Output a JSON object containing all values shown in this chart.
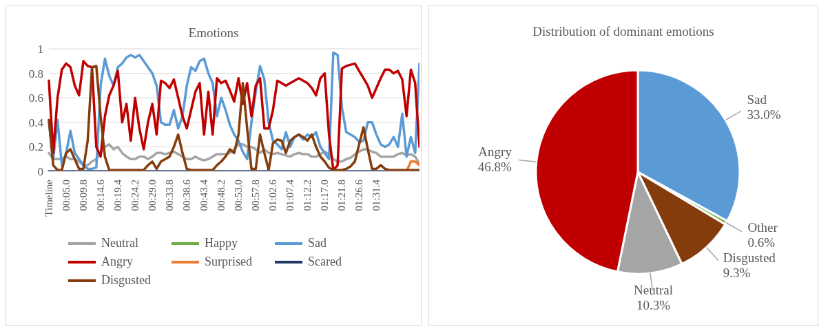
{
  "chart_data": [
    {
      "type": "line",
      "title": "Emotions",
      "categories": [
        "Timeline",
        null,
        null,
        null,
        "00:05.0",
        null,
        null,
        null,
        "00:09.8",
        null,
        null,
        null,
        "00:14.6",
        null,
        null,
        null,
        "00:19.4",
        null,
        null,
        null,
        "00:24.2",
        null,
        null,
        null,
        "00:29.0",
        null,
        null,
        null,
        "00:33.8",
        null,
        null,
        null,
        "00:38.6",
        null,
        null,
        null,
        "00:43.4",
        null,
        null,
        null,
        "00:48.2",
        null,
        null,
        null,
        "00:53.0",
        null,
        null,
        null,
        "00:57.8",
        null,
        null,
        null,
        "01:02.6",
        null,
        null,
        null,
        "01:07.4",
        null,
        null,
        null,
        "01:12.2",
        null,
        null,
        null,
        "01:17.0",
        null,
        null,
        null,
        "01:21.8",
        null,
        null,
        null,
        "01:26.6",
        null,
        null,
        null,
        "01:31.4",
        null,
        null,
        null,
        null,
        null,
        null,
        null,
        null,
        null,
        null
      ],
      "ylim": [
        0,
        1
      ],
      "yticks": [
        0,
        0.2,
        0.4,
        0.6,
        0.8,
        1
      ],
      "grid": "y",
      "legend": "bottom",
      "series": [
        {
          "name": "Neutral",
          "color": "#a5a5a5",
          "values": [
            0.15,
            0.1,
            0.1,
            0.1,
            0.12,
            0.1,
            0.1,
            0.08,
            0.05,
            0.05,
            0.08,
            0.1,
            0.15,
            0.2,
            0.22,
            0.18,
            0.2,
            0.15,
            0.12,
            0.1,
            0.1,
            0.12,
            0.12,
            0.1,
            0.12,
            0.15,
            0.15,
            0.14,
            0.15,
            0.16,
            0.14,
            0.12,
            0.1,
            0.1,
            0.12,
            0.1,
            0.09,
            0.1,
            0.12,
            0.14,
            0.14,
            0.14,
            0.15,
            0.18,
            0.22,
            0.22,
            0.2,
            0.2,
            0.18,
            0.15,
            0.18,
            0.15,
            0.14,
            0.15,
            0.14,
            0.13,
            0.12,
            0.14,
            0.15,
            0.14,
            0.14,
            0.12,
            0.12,
            0.14,
            0.16,
            0.14,
            0.1,
            0.08,
            0.08,
            0.1,
            0.11,
            0.14,
            0.16,
            0.18,
            0.18,
            0.16,
            0.15,
            0.12,
            0.12,
            0.12,
            0.12,
            0.14,
            0.15,
            0.13,
            0.14,
            0.12,
            0.06
          ]
        },
        {
          "name": "Happy",
          "color": "#70ad47",
          "values": [
            null,
            null,
            null,
            null,
            null,
            null,
            null,
            null,
            null,
            null,
            null,
            null,
            null,
            null,
            null,
            null,
            null,
            null,
            null,
            null,
            null,
            null,
            null,
            null,
            null,
            null,
            null,
            null,
            null,
            null,
            null,
            null,
            null,
            null,
            null,
            null,
            null,
            null,
            null,
            null,
            null,
            null,
            null,
            null,
            null,
            null,
            null,
            null,
            null,
            null,
            null,
            null,
            null,
            null,
            null,
            null,
            null,
            null,
            null,
            null,
            null,
            null,
            null,
            null,
            null,
            null,
            null,
            null,
            null,
            null,
            null,
            null,
            null,
            null,
            null,
            null,
            null,
            null,
            null,
            null,
            null,
            null,
            null,
            null,
            null,
            null,
            null
          ]
        },
        {
          "name": "Sad",
          "color": "#5b9bd5",
          "values": [
            0.4,
            0.1,
            0.42,
            0.05,
            0.15,
            0.33,
            0.15,
            0.1,
            0.05,
            0.02,
            0.02,
            0.03,
            0.7,
            0.92,
            0.78,
            0.7,
            0.85,
            0.88,
            0.93,
            0.95,
            0.93,
            0.95,
            0.9,
            0.85,
            0.8,
            0.7,
            0.4,
            0.38,
            0.38,
            0.5,
            0.35,
            0.45,
            0.7,
            0.85,
            0.82,
            0.9,
            0.92,
            0.8,
            0.72,
            0.45,
            0.6,
            0.5,
            0.38,
            0.3,
            0.25,
            0.16,
            0.1,
            0.4,
            0.65,
            0.86,
            0.75,
            0.4,
            0.25,
            0.22,
            0.18,
            0.32,
            0.2,
            0.28,
            0.3,
            0.26,
            0.3,
            0.28,
            0.32,
            0.2,
            0.15,
            0.1,
            0.97,
            0.95,
            0.52,
            0.32,
            0.3,
            0.28,
            0.24,
            0.25,
            0.4,
            0.4,
            0.3,
            0.22,
            0.2,
            0.22,
            0.28,
            0.2,
            0.47,
            0.12,
            0.28,
            0.15,
            0.88
          ]
        },
        {
          "name": "Angry",
          "color": "#c00000",
          "values": [
            0.74,
            0.15,
            0.6,
            0.83,
            0.88,
            0.85,
            0.7,
            0.62,
            0.9,
            0.86,
            0.85,
            0.2,
            0.12,
            0.45,
            0.62,
            0.7,
            0.82,
            0.4,
            0.55,
            0.25,
            0.6,
            0.35,
            0.18,
            0.4,
            0.55,
            0.3,
            0.74,
            0.72,
            0.68,
            0.75,
            0.6,
            0.45,
            0.35,
            0.5,
            0.65,
            0.72,
            0.3,
            0.65,
            0.3,
            0.76,
            0.72,
            0.74,
            0.66,
            0.57,
            0.76,
            0.55,
            0.72,
            0.45,
            0.7,
            0.76,
            0.35,
            0.35,
            0.5,
            0.74,
            0.72,
            0.7,
            0.72,
            0.74,
            0.76,
            0.74,
            0.72,
            0.68,
            0.62,
            0.76,
            0.8,
            0.3,
            0.01,
            0.05,
            0.84,
            0.86,
            0.87,
            0.88,
            0.82,
            0.76,
            0.7,
            0.6,
            0.68,
            0.76,
            0.83,
            0.83,
            0.8,
            0.82,
            0.75,
            0.45,
            0.83,
            0.72,
            0.2
          ]
        },
        {
          "name": "Surprised",
          "color": "#ed7d31",
          "values": [
            null,
            null,
            null,
            null,
            null,
            null,
            null,
            null,
            null,
            null,
            null,
            null,
            null,
            null,
            null,
            null,
            null,
            null,
            null,
            null,
            null,
            null,
            null,
            null,
            null,
            null,
            null,
            null,
            null,
            null,
            null,
            null,
            null,
            null,
            null,
            null,
            null,
            null,
            null,
            null,
            null,
            null,
            null,
            null,
            null,
            null,
            null,
            null,
            null,
            null,
            null,
            null,
            null,
            null,
            null,
            null,
            null,
            null,
            null,
            null,
            null,
            null,
            null,
            null,
            null,
            null,
            null,
            null,
            null,
            null,
            null,
            null,
            null,
            null,
            null,
            null,
            null,
            null,
            null,
            null,
            null,
            null,
            null,
            0,
            0.08,
            0.08,
            0.05
          ]
        },
        {
          "name": "Scared",
          "color": "#1f3864",
          "values": [
            0,
            0,
            0,
            0,
            0,
            0,
            0,
            0,
            0,
            0,
            0,
            0,
            0,
            0,
            0,
            0,
            0,
            0,
            0,
            0,
            0,
            0,
            0,
            0,
            0,
            0,
            0,
            0,
            0,
            0,
            0,
            0,
            0,
            0,
            0,
            0,
            0,
            0,
            0,
            0,
            0,
            0,
            0,
            0,
            0,
            0,
            0,
            0,
            0,
            0,
            0,
            0,
            0,
            0,
            0,
            0,
            0,
            0,
            0,
            0,
            0,
            0,
            0,
            0,
            0,
            0,
            0,
            0,
            0,
            0,
            0,
            0,
            0,
            0,
            0,
            0,
            0,
            0,
            0,
            0,
            0,
            null,
            null,
            null,
            null,
            null,
            null
          ]
        },
        {
          "name": "Disgusted",
          "color": "#843c0c",
          "values": [
            0.42,
            0.05,
            0.01,
            0.01,
            0.15,
            0.18,
            0.1,
            0.02,
            0.02,
            0.25,
            0.85,
            0.86,
            0.45,
            0.12,
            0.01,
            0.01,
            0.01,
            0.01,
            0.01,
            0.01,
            0.01,
            0.01,
            0.01,
            0.05,
            0.08,
            0.02,
            0.08,
            0.1,
            0.12,
            0.2,
            0.3,
            0.15,
            0.02,
            0.01,
            0.01,
            0.01,
            0.01,
            0.01,
            0.01,
            0.05,
            0.08,
            0.12,
            0.18,
            0.15,
            0.3,
            0.72,
            0.35,
            0.02,
            0.02,
            0.3,
            0.15,
            0.01,
            0.23,
            0.26,
            0.25,
            0.15,
            0.25,
            0.28,
            0.3,
            0.28,
            0.25,
            0.3,
            0.2,
            0.12,
            0.08,
            0.03,
            0.01,
            0.01,
            0.01,
            0.02,
            0.04,
            0.08,
            0.22,
            0.36,
            0.18,
            0.02,
            0.02,
            0.05,
            0.02,
            0.01,
            0.01,
            0.01,
            0.01,
            0.01,
            0.01,
            0.01,
            0.01
          ]
        }
      ]
    },
    {
      "type": "pie",
      "title": "Distribution of dominant emotions",
      "categories": [
        "Sad",
        "Other",
        "Disgusted",
        "Neutral",
        "Angry"
      ],
      "values": [
        33.0,
        0.6,
        9.3,
        10.3,
        46.8
      ],
      "value_labels": [
        "33.0%",
        "0.6%",
        "9.3%",
        "10.3%",
        "46.8%"
      ],
      "colors": [
        "#5b9bd5",
        "#70ad47",
        "#843c0c",
        "#a5a5a5",
        "#c00000"
      ]
    }
  ]
}
